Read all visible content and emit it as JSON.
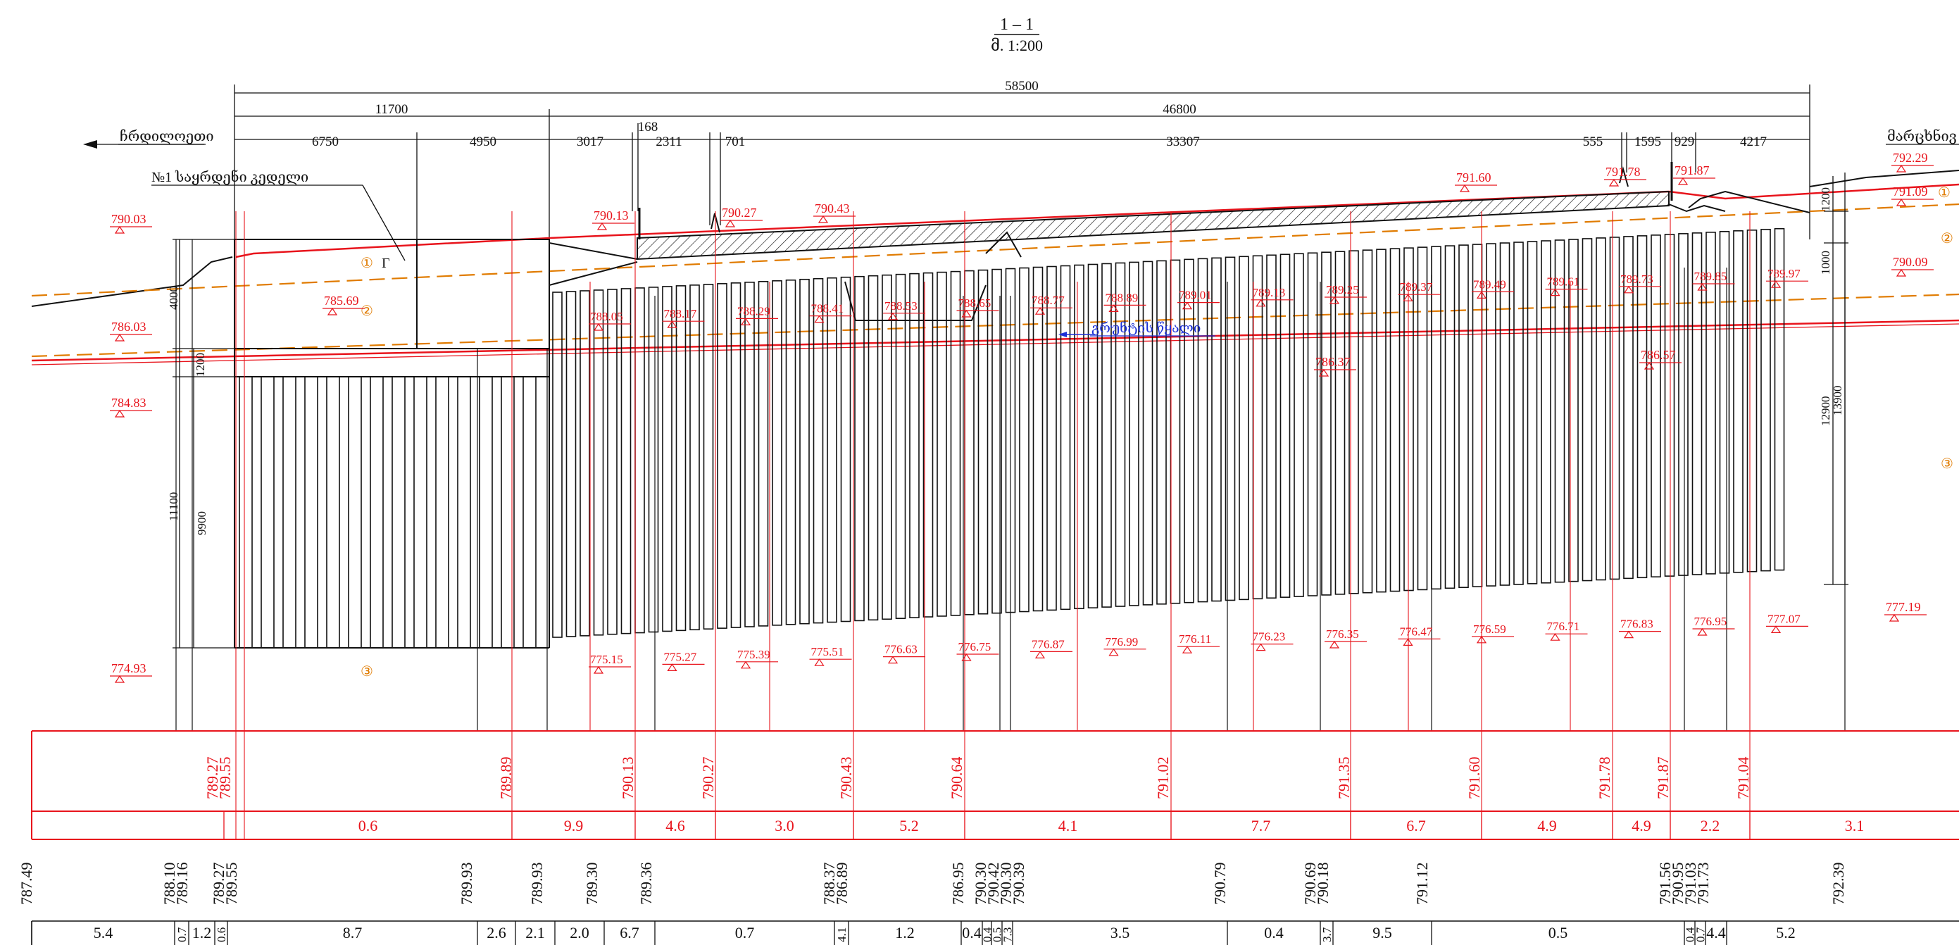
{
  "title": {
    "section": "1 – 1",
    "scale": "მ. 1:200"
  },
  "direction": {
    "left": "ჩრდილოეთი",
    "right": "მარცხნივ"
  },
  "labels": {
    "wall": "№1 საყრდენი კედელი",
    "groundwater": "გრუნტის წყალი"
  },
  "dimensions": {
    "total": "58500",
    "left_span": "11700",
    "right_span": "46800",
    "segments": [
      "6750",
      "4950",
      "3017",
      "168",
      "2311",
      "701",
      "33307",
      "555",
      "1595",
      "929",
      "4217"
    ],
    "left_vertical": [
      "4000",
      "1200",
      "11100",
      "9900"
    ],
    "right_vertical": [
      "1200",
      "1000",
      "12900",
      "13900"
    ]
  },
  "layers": [
    "①",
    "②",
    "③"
  ],
  "soil_marker": "Г",
  "elevations": {
    "surface": [
      "790.03",
      "790.13",
      "790.27",
      "790.43",
      "791.60",
      "791.78",
      "791.87",
      "792.29",
      "791.09",
      "790.09",
      "785.69",
      "786.03",
      "784.83",
      "774.93",
      "786.37",
      "786.57",
      "777.19"
    ],
    "pile_heads": [
      "788.05",
      "788.17",
      "788.29",
      "788.41",
      "788.53",
      "788.65",
      "788.77",
      "788.89",
      "789.01",
      "789.13",
      "789.25",
      "789.37",
      "789.49",
      "789.61",
      "789.73",
      "789.85",
      "789.97"
    ],
    "pile_tips": [
      "775.15",
      "775.27",
      "775.39",
      "775.51",
      "776.63",
      "776.75",
      "776.87",
      "776.99",
      "776.11",
      "776.23",
      "776.35",
      "776.47",
      "776.59",
      "776.71",
      "776.83",
      "776.95",
      "777.07"
    ]
  },
  "table": {
    "design_marks": [
      "789.27\n789.55",
      "789.89",
      "790.13",
      "790.27",
      "790.43",
      "790.64",
      "791.02",
      "791.35",
      "791.60",
      "791.78",
      "791.87",
      "791.04"
    ],
    "design_distances": [
      "0.6",
      "9.9",
      "4.6",
      "3.0",
      "5.2",
      "4.1",
      "7.7",
      "6.7",
      "4.9",
      "4.9",
      "2.2",
      "3.1"
    ],
    "ground_marks": [
      "787.49",
      "788.10\n789.16",
      "789.27\n789.55",
      "789.93",
      "789.93",
      "789.30",
      "789.36",
      "788.37\n786.89",
      "786.95",
      "790.30\n790.42\n790.30\n790.39",
      "790.79",
      "790.69\n790.18",
      "791.12",
      "791.56\n790.95\n791.03\n791.73",
      "792.39"
    ],
    "ground_distances": [
      "5.4",
      "0.7",
      "1.2",
      "0.6",
      "8.7",
      "2.6",
      "2.1",
      "2.0",
      "6.7",
      "0.7",
      "4.1",
      "1.2",
      "0.4",
      "0.4",
      "0.5",
      "7.3",
      "3.5",
      "0.4",
      "3.7",
      "9.5",
      "0.5",
      "0.4",
      "0.7",
      "4.4",
      "5.2"
    ]
  },
  "colors": {
    "line": "#111111",
    "design": "#e8141c",
    "soil": "#e07b00",
    "water": "#1a2fd6"
  }
}
